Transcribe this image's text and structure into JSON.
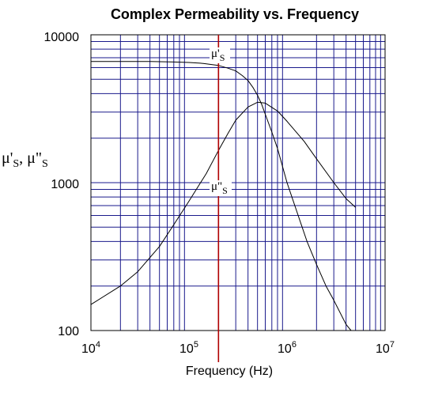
{
  "chart_data": {
    "type": "line",
    "title": "Complex Permeability vs. Frequency",
    "xlabel": "Frequency (Hz)",
    "ylabel": "μ'S, μ\"S",
    "ylabel_parts": {
      "mu1": "μ'",
      "s1": "S",
      "sep": ", ",
      "mu2": "μ\"",
      "s2": "S"
    },
    "x_scale": "log",
    "y_scale": "log",
    "xlim": [
      10000,
      10000000
    ],
    "ylim": [
      100,
      10000
    ],
    "x_ticks": [
      {
        "base": "10",
        "exp": "4"
      },
      {
        "base": "10",
        "exp": "5"
      },
      {
        "base": "10",
        "exp": "6"
      },
      {
        "base": "10",
        "exp": "7"
      }
    ],
    "y_ticks": [
      "100",
      "1000",
      "10000"
    ],
    "grid": true,
    "grid_color": "#1a1a8c",
    "marker_line": {
      "x": 200000,
      "color": "#b00000"
    },
    "series": [
      {
        "label_mu": "μ'",
        "label_sub": "S",
        "x": [
          10000,
          20000,
          40000,
          70000,
          100000,
          140000,
          200000,
          250000,
          300000,
          350000,
          400000,
          450000,
          500000,
          550000,
          600000,
          700000,
          800000,
          1000000,
          1300000,
          1600000,
          2000000,
          2500000,
          3000000,
          4000000,
          4500000
        ],
        "values": [
          6600,
          6600,
          6600,
          6550,
          6500,
          6400,
          6200,
          5950,
          5700,
          5300,
          4900,
          4400,
          3900,
          3400,
          2900,
          2200,
          1700,
          1000,
          600,
          400,
          280,
          200,
          160,
          110,
          100
        ]
      },
      {
        "label_mu": "μ\"",
        "label_sub": "S",
        "x": [
          10000,
          20000,
          30000,
          50000,
          70000,
          100000,
          150000,
          200000,
          250000,
          300000,
          400000,
          500000,
          600000,
          800000,
          1000000,
          1500000,
          2000000,
          3000000,
          4000000,
          5000000
        ],
        "values": [
          150,
          200,
          250,
          370,
          520,
          750,
          1150,
          1650,
          2150,
          2650,
          3250,
          3500,
          3450,
          3050,
          2600,
          1900,
          1450,
          1000,
          780,
          680
        ]
      }
    ]
  }
}
